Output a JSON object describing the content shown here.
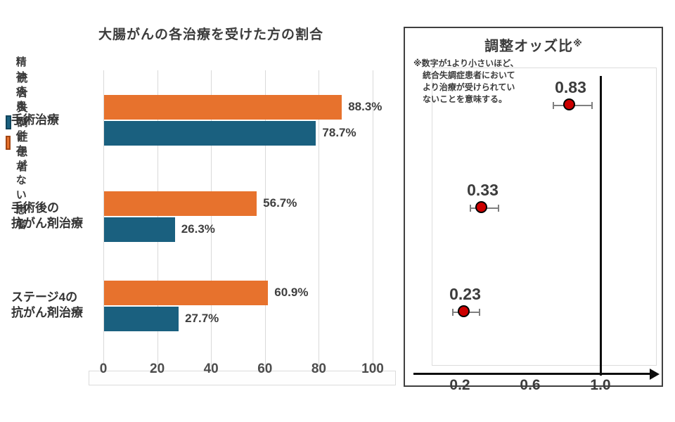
{
  "left_chart": {
    "title": "大腸がんの各治療を受けた方の割合"
  },
  "right_panel": {
    "title": "調整オッズ比",
    "title_mark": "※",
    "note_lines": [
      "※数字が1より小さいほど、",
      "統合失調症患者において",
      "より治療が受けられてい",
      "ないことを意味する。"
    ]
  },
  "chart_data": [
    {
      "type": "bar",
      "orientation": "horizontal",
      "title": "大腸がんの各治療を受けた方の割合",
      "categories": [
        "手術治療",
        "手術後の\n抗がん剤治療",
        "ステージ4の\n抗がん剤治療"
      ],
      "series": [
        {
          "name": "精神疾患の併存がない患者",
          "color": "#E7722D",
          "swatch_border": "#A34614",
          "values": [
            88.3,
            56.7,
            60.9
          ],
          "value_labels": [
            "88.3%",
            "56.7%",
            "60.9%"
          ]
        },
        {
          "name": "統合失調症患者",
          "color": "#1A607F",
          "swatch_border": "#11455C",
          "values": [
            78.7,
            26.3,
            27.7
          ],
          "value_labels": [
            "78.7%",
            "26.3%",
            "27.7%"
          ]
        }
      ],
      "xlim": [
        0,
        100
      ],
      "xticks": [
        0,
        20,
        40,
        60,
        80,
        100
      ],
      "grid": true,
      "legend_position": "top-left"
    },
    {
      "type": "scatter",
      "subtype": "forest-plot",
      "title": "調整オッズ比※",
      "note": "※数字が1より小さいほど、統合失調症患者においてより治療が受けられていないことを意味する。",
      "points": [
        {
          "label": "0.83",
          "value": 0.83,
          "ci_low": 0.73,
          "ci_high": 0.95
        },
        {
          "label": "0.33",
          "value": 0.33,
          "ci_low": 0.26,
          "ci_high": 0.42
        },
        {
          "label": "0.23",
          "value": 0.23,
          "ci_low": 0.16,
          "ci_high": 0.31
        }
      ],
      "xticks": [
        0.2,
        0.6,
        1.0
      ],
      "xtick_labels": [
        "0.2",
        "0.6",
        "1.0"
      ],
      "reference_line": 1.0,
      "point_color": "#CC0000",
      "point_border": "#000000",
      "error_bar_color": "#7F7F7F"
    }
  ]
}
